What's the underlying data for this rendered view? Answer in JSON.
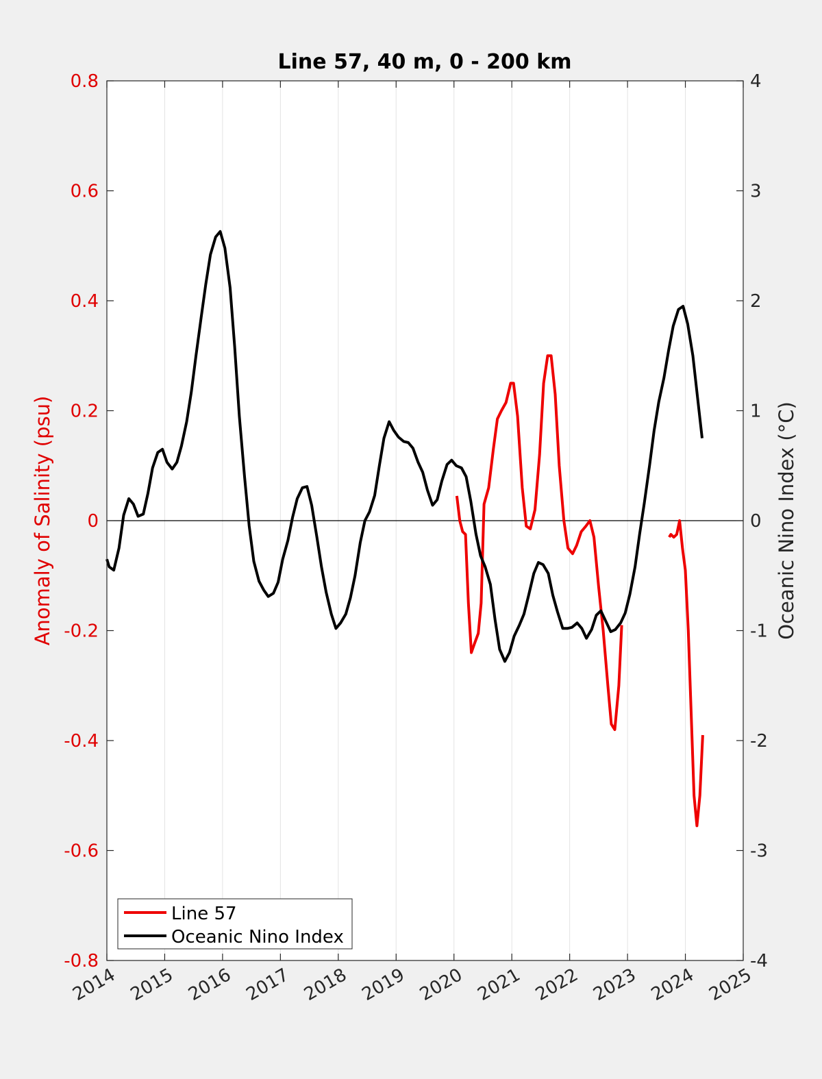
{
  "chart_data": {
    "type": "line",
    "title": "Line 57, 40 m, 0 - 200 km",
    "xlabel": "",
    "ylabel_left": "Anomaly of Salinity (psu)",
    "ylabel_right": "Oceanic Nino Index (°C)",
    "xlim": [
      2014,
      2025
    ],
    "ylim_left": [
      -0.8,
      0.8
    ],
    "ylim_right": [
      -4,
      4
    ],
    "x_ticks": [
      "2014",
      "2015",
      "2016",
      "2017",
      "2018",
      "2019",
      "2020",
      "2021",
      "2022",
      "2023",
      "2024",
      "2025"
    ],
    "y_left_ticks": [
      "-0.8",
      "-0.6",
      "-0.4",
      "-0.2",
      "0",
      "0.2",
      "0.4",
      "0.6",
      "0.8"
    ],
    "y_right_ticks": [
      "-4",
      "-3",
      "-2",
      "-1",
      "0",
      "1",
      "2",
      "3",
      "4"
    ],
    "grid": "vertical",
    "zero_line": true,
    "legend_position": "bottom-left",
    "colors": {
      "line57": "#ee0000",
      "oni": "#000000",
      "left_axis": "#e00000"
    },
    "series": [
      {
        "name": "Line 57",
        "axis": "left",
        "segments": [
          [
            [
              2020.05,
              0.045
            ],
            [
              2020.1,
              0.0
            ],
            [
              2020.15,
              -0.02
            ],
            [
              2020.2,
              -0.025
            ],
            [
              2020.25,
              -0.15
            ],
            [
              2020.3,
              -0.24
            ],
            [
              2020.35,
              -0.225
            ],
            [
              2020.42,
              -0.205
            ],
            [
              2020.47,
              -0.15
            ],
            [
              2020.52,
              0.03
            ],
            [
              2020.6,
              0.06
            ],
            [
              2020.68,
              0.13
            ],
            [
              2020.75,
              0.185
            ],
            [
              2020.82,
              0.2
            ],
            [
              2020.9,
              0.215
            ],
            [
              2020.98,
              0.25
            ],
            [
              2021.03,
              0.25
            ],
            [
              2021.1,
              0.19
            ],
            [
              2021.18,
              0.06
            ],
            [
              2021.25,
              -0.01
            ],
            [
              2021.32,
              -0.015
            ],
            [
              2021.4,
              0.02
            ],
            [
              2021.48,
              0.12
            ],
            [
              2021.55,
              0.25
            ],
            [
              2021.62,
              0.3
            ],
            [
              2021.68,
              0.3
            ],
            [
              2021.75,
              0.23
            ],
            [
              2021.82,
              0.1
            ],
            [
              2021.9,
              0.0
            ],
            [
              2021.97,
              -0.05
            ],
            [
              2022.05,
              -0.06
            ],
            [
              2022.12,
              -0.045
            ],
            [
              2022.2,
              -0.02
            ],
            [
              2022.28,
              -0.01
            ],
            [
              2022.35,
              0.0
            ],
            [
              2022.42,
              -0.03
            ],
            [
              2022.5,
              -0.12
            ],
            [
              2022.58,
              -0.2
            ],
            [
              2022.66,
              -0.3
            ],
            [
              2022.72,
              -0.37
            ],
            [
              2022.78,
              -0.38
            ],
            [
              2022.85,
              -0.3
            ],
            [
              2022.9,
              -0.19
            ]
          ],
          [
            [
              2023.72,
              -0.03
            ],
            [
              2023.75,
              -0.025
            ],
            [
              2023.8,
              -0.03
            ],
            [
              2023.85,
              -0.025
            ],
            [
              2023.9,
              0.0
            ],
            [
              2023.95,
              -0.05
            ],
            [
              2024.0,
              -0.09
            ],
            [
              2024.05,
              -0.2
            ],
            [
              2024.1,
              -0.35
            ],
            [
              2024.15,
              -0.5
            ],
            [
              2024.2,
              -0.555
            ],
            [
              2024.25,
              -0.5
            ],
            [
              2024.3,
              -0.39
            ]
          ]
        ]
      },
      {
        "name": "Oceanic Nino Index",
        "axis": "right",
        "values": [
          [
            2014.0,
            -0.35
          ],
          [
            2014.04,
            -0.42
          ],
          [
            2014.12,
            -0.45
          ],
          [
            2014.21,
            -0.25
          ],
          [
            2014.29,
            0.05
          ],
          [
            2014.38,
            0.2
          ],
          [
            2014.46,
            0.15
          ],
          [
            2014.54,
            0.04
          ],
          [
            2014.63,
            0.06
          ],
          [
            2014.71,
            0.25
          ],
          [
            2014.79,
            0.48
          ],
          [
            2014.88,
            0.62
          ],
          [
            2014.96,
            0.65
          ],
          [
            2015.04,
            0.53
          ],
          [
            2015.13,
            0.47
          ],
          [
            2015.21,
            0.53
          ],
          [
            2015.29,
            0.68
          ],
          [
            2015.38,
            0.9
          ],
          [
            2015.46,
            1.17
          ],
          [
            2015.54,
            1.5
          ],
          [
            2015.63,
            1.85
          ],
          [
            2015.71,
            2.15
          ],
          [
            2015.79,
            2.42
          ],
          [
            2015.88,
            2.58
          ],
          [
            2015.96,
            2.63
          ],
          [
            2016.04,
            2.48
          ],
          [
            2016.13,
            2.12
          ],
          [
            2016.21,
            1.58
          ],
          [
            2016.29,
            0.95
          ],
          [
            2016.38,
            0.4
          ],
          [
            2016.46,
            -0.05
          ],
          [
            2016.54,
            -0.37
          ],
          [
            2016.63,
            -0.55
          ],
          [
            2016.71,
            -0.63
          ],
          [
            2016.79,
            -0.69
          ],
          [
            2016.88,
            -0.66
          ],
          [
            2016.96,
            -0.56
          ],
          [
            2017.04,
            -0.35
          ],
          [
            2017.13,
            -0.18
          ],
          [
            2017.21,
            0.03
          ],
          [
            2017.29,
            0.2
          ],
          [
            2017.38,
            0.3
          ],
          [
            2017.46,
            0.31
          ],
          [
            2017.54,
            0.14
          ],
          [
            2017.63,
            -0.15
          ],
          [
            2017.71,
            -0.42
          ],
          [
            2017.79,
            -0.65
          ],
          [
            2017.88,
            -0.85
          ],
          [
            2017.96,
            -0.98
          ],
          [
            2018.04,
            -0.93
          ],
          [
            2018.13,
            -0.85
          ],
          [
            2018.21,
            -0.7
          ],
          [
            2018.29,
            -0.5
          ],
          [
            2018.38,
            -0.2
          ],
          [
            2018.46,
            0.0
          ],
          [
            2018.54,
            0.08
          ],
          [
            2018.63,
            0.23
          ],
          [
            2018.71,
            0.5
          ],
          [
            2018.79,
            0.75
          ],
          [
            2018.88,
            0.9
          ],
          [
            2018.96,
            0.82
          ],
          [
            2019.04,
            0.76
          ],
          [
            2019.13,
            0.72
          ],
          [
            2019.21,
            0.71
          ],
          [
            2019.29,
            0.66
          ],
          [
            2019.38,
            0.53
          ],
          [
            2019.46,
            0.44
          ],
          [
            2019.54,
            0.28
          ],
          [
            2019.63,
            0.14
          ],
          [
            2019.71,
            0.19
          ],
          [
            2019.79,
            0.36
          ],
          [
            2019.88,
            0.51
          ],
          [
            2019.96,
            0.55
          ],
          [
            2020.04,
            0.5
          ],
          [
            2020.13,
            0.48
          ],
          [
            2020.21,
            0.4
          ],
          [
            2020.29,
            0.18
          ],
          [
            2020.38,
            -0.12
          ],
          [
            2020.46,
            -0.32
          ],
          [
            2020.54,
            -0.42
          ],
          [
            2020.63,
            -0.58
          ],
          [
            2020.71,
            -0.9
          ],
          [
            2020.79,
            -1.17
          ],
          [
            2020.88,
            -1.28
          ],
          [
            2020.96,
            -1.2
          ],
          [
            2021.04,
            -1.05
          ],
          [
            2021.13,
            -0.95
          ],
          [
            2021.21,
            -0.85
          ],
          [
            2021.29,
            -0.68
          ],
          [
            2021.38,
            -0.48
          ],
          [
            2021.46,
            -0.38
          ],
          [
            2021.54,
            -0.4
          ],
          [
            2021.63,
            -0.48
          ],
          [
            2021.71,
            -0.68
          ],
          [
            2021.79,
            -0.83
          ],
          [
            2021.88,
            -0.98
          ],
          [
            2021.96,
            -0.98
          ],
          [
            2022.04,
            -0.97
          ],
          [
            2022.13,
            -0.93
          ],
          [
            2022.21,
            -0.98
          ],
          [
            2022.29,
            -1.07
          ],
          [
            2022.38,
            -0.99
          ],
          [
            2022.46,
            -0.86
          ],
          [
            2022.54,
            -0.82
          ],
          [
            2022.63,
            -0.92
          ],
          [
            2022.71,
            -1.01
          ],
          [
            2022.79,
            -0.99
          ],
          [
            2022.88,
            -0.93
          ],
          [
            2022.96,
            -0.84
          ],
          [
            2023.04,
            -0.67
          ],
          [
            2023.13,
            -0.42
          ],
          [
            2023.21,
            -0.12
          ],
          [
            2023.29,
            0.16
          ],
          [
            2023.38,
            0.5
          ],
          [
            2023.46,
            0.82
          ],
          [
            2023.54,
            1.08
          ],
          [
            2023.63,
            1.3
          ],
          [
            2023.71,
            1.55
          ],
          [
            2023.79,
            1.77
          ],
          [
            2023.88,
            1.92
          ],
          [
            2023.96,
            1.95
          ],
          [
            2024.04,
            1.79
          ],
          [
            2024.13,
            1.5
          ],
          [
            2024.21,
            1.12
          ],
          [
            2024.29,
            0.75
          ]
        ]
      }
    ]
  }
}
